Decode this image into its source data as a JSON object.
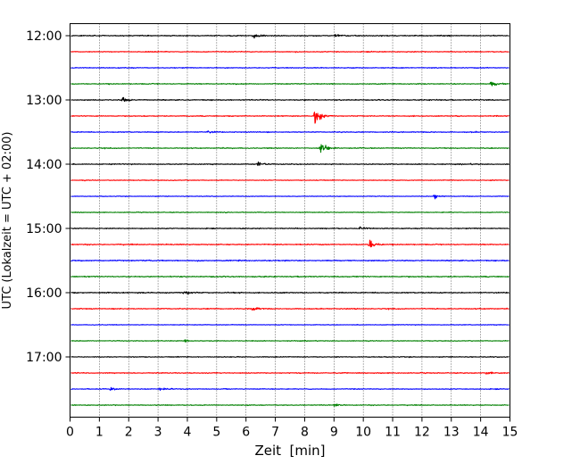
{
  "chart_data": {
    "type": "line",
    "xlabel": "Zeit  [min]",
    "ylabel": "UTC (Lokalzeit = UTC + 02:00)",
    "xlim": [
      0,
      15
    ],
    "x_ticks": [
      0,
      1,
      2,
      3,
      4,
      5,
      6,
      7,
      8,
      9,
      10,
      11,
      12,
      13,
      14,
      15
    ],
    "y_ticks": [
      "12:00",
      "13:00",
      "14:00",
      "15:00",
      "16:00",
      "17:00"
    ],
    "grid": "vertical dotted lines at each minute",
    "rows_per_hour": 4,
    "row_interval_min": 15,
    "color_cycle": [
      "#000000",
      "#ff0000",
      "#0000ff",
      "#008000"
    ],
    "traces": [
      {
        "start": "12:00",
        "amplitude": 0.55,
        "events": [
          {
            "t": 6.25,
            "a": 1.4
          },
          {
            "t": 9.05,
            "a": 0.9
          }
        ]
      },
      {
        "start": "12:15",
        "amplitude": 0.45,
        "events": []
      },
      {
        "start": "12:30",
        "amplitude": 0.45,
        "events": []
      },
      {
        "start": "12:45",
        "amplitude": 0.5,
        "events": [
          {
            "t": 14.35,
            "a": 1.6
          }
        ]
      },
      {
        "start": "13:00",
        "amplitude": 0.55,
        "events": [
          {
            "t": 1.8,
            "a": 1.5
          }
        ]
      },
      {
        "start": "13:15",
        "amplitude": 0.5,
        "events": [
          {
            "t": 8.35,
            "a": 4.5
          }
        ]
      },
      {
        "start": "13:30",
        "amplitude": 0.5,
        "events": [
          {
            "t": 4.7,
            "a": 0.7
          }
        ]
      },
      {
        "start": "13:45",
        "amplitude": 0.5,
        "events": [
          {
            "t": 8.55,
            "a": 3.6
          }
        ]
      },
      {
        "start": "14:00",
        "amplitude": 0.5,
        "events": [
          {
            "t": 6.4,
            "a": 1.4
          }
        ]
      },
      {
        "start": "14:15",
        "amplitude": 0.4,
        "events": []
      },
      {
        "start": "14:30",
        "amplitude": 0.35,
        "events": [
          {
            "t": 12.4,
            "a": 1.4
          }
        ]
      },
      {
        "start": "14:45",
        "amplitude": 0.4,
        "events": []
      },
      {
        "start": "15:00",
        "amplitude": 0.5,
        "events": [
          {
            "t": 9.9,
            "a": 1.0
          }
        ]
      },
      {
        "start": "15:15",
        "amplitude": 0.55,
        "events": [
          {
            "t": 10.2,
            "a": 3.0
          }
        ]
      },
      {
        "start": "15:30",
        "amplitude": 0.6,
        "events": []
      },
      {
        "start": "15:45",
        "amplitude": 0.6,
        "events": []
      },
      {
        "start": "16:00",
        "amplitude": 0.6,
        "events": [
          {
            "t": 3.9,
            "a": 1.0
          }
        ]
      },
      {
        "start": "16:15",
        "amplitude": 0.55,
        "events": [
          {
            "t": 6.2,
            "a": 1.3
          }
        ]
      },
      {
        "start": "16:30",
        "amplitude": 0.35,
        "events": []
      },
      {
        "start": "16:45",
        "amplitude": 0.4,
        "events": [
          {
            "t": 3.9,
            "a": 1.0
          }
        ]
      },
      {
        "start": "17:00",
        "amplitude": 0.45,
        "events": []
      },
      {
        "start": "17:15",
        "amplitude": 0.5,
        "events": [
          {
            "t": 14.2,
            "a": 1.0
          }
        ]
      },
      {
        "start": "17:30",
        "amplitude": 0.45,
        "events": [
          {
            "t": 1.4,
            "a": 0.9
          },
          {
            "t": 3.05,
            "a": 1.0
          }
        ]
      },
      {
        "start": "17:45",
        "amplitude": 0.45,
        "events": [
          {
            "t": 9.0,
            "a": 0.8
          }
        ]
      }
    ]
  }
}
